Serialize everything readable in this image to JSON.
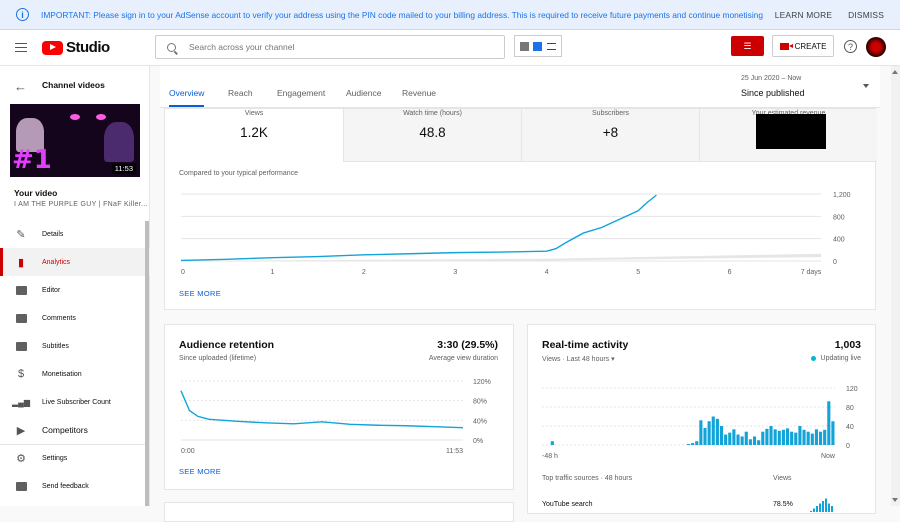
{
  "banner": {
    "message": "IMPORTANT: Please sign in to your AdSense account to verify your address using the PIN code mailed to your billing address. This is required to receive future payments and continue monetising",
    "learn_more": "LEARN MORE",
    "dismiss": "DISMISS"
  },
  "header": {
    "logo_text": "Studio",
    "search_placeholder": "Search across your channel",
    "create_label": "CREATE",
    "help_icon": "?"
  },
  "sidebar": {
    "back_label": "Channel videos",
    "thumb_number": "#1",
    "duration": "11:53",
    "your_video": "Your video",
    "video_title": "I AM THE PURPLE GUY | FNaF Killer...",
    "items": [
      {
        "label": "Details",
        "icon": "pencil-icon"
      },
      {
        "label": "Analytics",
        "icon": "analytics-icon",
        "active": true
      },
      {
        "label": "Editor",
        "icon": "film-icon"
      },
      {
        "label": "Comments",
        "icon": "comment-icon"
      },
      {
        "label": "Subtitles",
        "icon": "subtitles-icon"
      },
      {
        "label": "Monetisation",
        "icon": "dollar-icon"
      },
      {
        "label": "Live Subscriber Count",
        "icon": "bars-icon"
      },
      {
        "label": "Competitors",
        "icon": "play-icon"
      },
      {
        "label": "Settings",
        "icon": "gear-icon"
      },
      {
        "label": "Send feedback",
        "icon": "feedback-icon"
      }
    ]
  },
  "tabs": [
    "Overview",
    "Reach",
    "Engagement",
    "Audience",
    "Revenue"
  ],
  "date_range": {
    "dates": "25 Jun 2020 – Now",
    "label": "Since published"
  },
  "overview": {
    "metrics": [
      {
        "label": "Views",
        "value": "1.2K"
      },
      {
        "label": "Watch time (hours)",
        "value": "48.8"
      },
      {
        "label": "Subscribers",
        "value": "+8"
      },
      {
        "label": "Your estimated revenue",
        "value": ""
      }
    ],
    "compare_text": "Compared to your typical performance",
    "see_more": "SEE MORE",
    "x_ticks": [
      "0",
      "1",
      "2",
      "3",
      "4",
      "5",
      "6",
      "7 days"
    ],
    "y_ticks": [
      "1,200",
      "800",
      "400",
      "0"
    ]
  },
  "retention": {
    "title": "Audience retention",
    "subtitle": "Since uploaded (lifetime)",
    "value": "3:30 (29.5%)",
    "value_label": "Average view duration",
    "x_ticks": [
      "0:00",
      "11:53"
    ],
    "y_ticks": [
      "120%",
      "80%",
      "40%",
      "0%"
    ],
    "see_more": "SEE MORE"
  },
  "realtime": {
    "title": "Real-time activity",
    "subtitle": "Views · Last 48 hours",
    "value": "1,003",
    "status": "Updating live",
    "x_ticks": [
      "-48 h",
      "Now"
    ],
    "y_ticks": [
      "120",
      "80",
      "40",
      "0"
    ],
    "traffic_title": "Top traffic sources · 48 hours",
    "traffic_col": "Views",
    "traffic_rows": [
      {
        "source": "YouTube search",
        "pct": "78.5%"
      }
    ]
  },
  "colors": {
    "accent": "#065fd4",
    "line": "#12a4d9",
    "brand": "#ff0000"
  },
  "chart_data": [
    {
      "type": "line",
      "title": "",
      "x": [
        0,
        0.5,
        1,
        1.5,
        2,
        2.5,
        3,
        3.5,
        4,
        4.1,
        4.2,
        4.4,
        4.6,
        4.8,
        5,
        5.1,
        5.2
      ],
      "series": [
        {
          "values": [
            10,
            30,
            60,
            80,
            110,
            130,
            150,
            160,
            175,
            220,
            320,
            500,
            600,
            750,
            900,
            1050,
            1180
          ]
        }
      ],
      "ylim": [
        0,
        1200
      ],
      "xlabel": "",
      "ylabel": ""
    },
    {
      "type": "line",
      "title": "",
      "x": [
        0,
        0.03,
        0.06,
        0.1,
        0.2,
        0.3,
        0.4,
        0.5,
        0.6,
        0.7,
        0.8,
        0.9,
        1.0
      ],
      "series": [
        {
          "values": [
            100,
            60,
            48,
            42,
            38,
            35,
            33,
            37,
            32,
            30,
            29,
            27,
            25
          ]
        }
      ],
      "ylim": [
        0,
        120
      ]
    },
    {
      "type": "bar",
      "title": "",
      "values": [
        0,
        0,
        8,
        0,
        0,
        0,
        0,
        0,
        0,
        0,
        0,
        0,
        0,
        0,
        0,
        0,
        0,
        0,
        0,
        0,
        0,
        0,
        0,
        0,
        0,
        0,
        0,
        0,
        0,
        0,
        0,
        0,
        0,
        0,
        0,
        2,
        4,
        8,
        52,
        36,
        50,
        60,
        55,
        40,
        22,
        26,
        33,
        22,
        18,
        28,
        12,
        18,
        10,
        28,
        34,
        40,
        33,
        30,
        32,
        35,
        28,
        26,
        40,
        32,
        28,
        24,
        33,
        28,
        32,
        92,
        50
      ],
      "ylim": [
        0,
        120
      ]
    }
  ]
}
